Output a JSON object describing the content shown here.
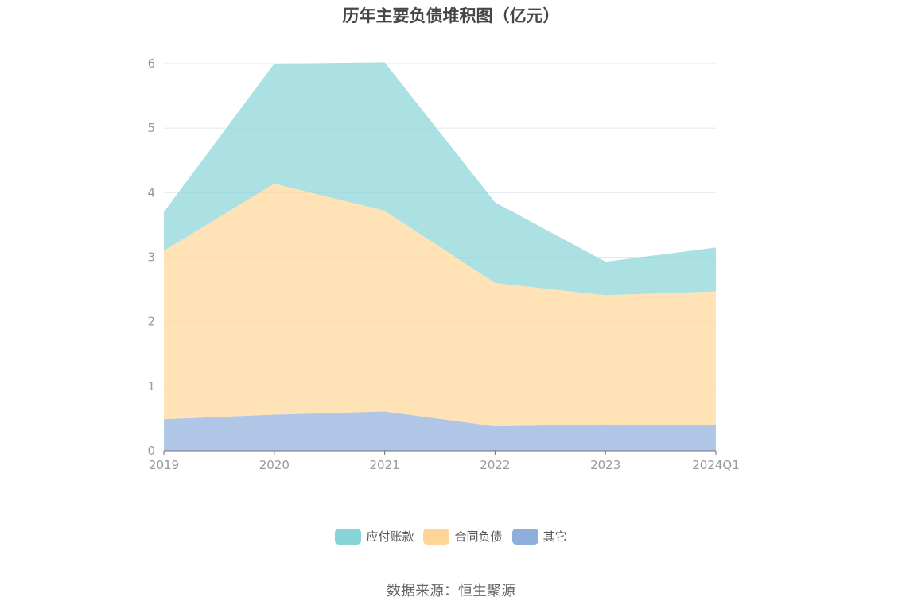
{
  "chart_data": {
    "type": "area",
    "title": "历年主要负债堆积图（亿元）",
    "x": [
      "2019",
      "2020",
      "2021",
      "2022",
      "2023",
      "2024Q1"
    ],
    "stacked": true,
    "ylim": [
      0,
      6
    ],
    "yticks": [
      "0",
      "1",
      "2",
      "3",
      "4",
      "5",
      "6"
    ],
    "grid": true,
    "legend_position": "bottom",
    "series": [
      {
        "name": "其它",
        "color": "#8eaedc",
        "values": [
          0.49,
          0.56,
          0.61,
          0.38,
          0.41,
          0.4
        ]
      },
      {
        "name": "合同负债",
        "color": "#ffd596",
        "values": [
          2.61,
          3.58,
          3.11,
          2.22,
          2.0,
          2.07
        ]
      },
      {
        "name": "应付账款",
        "color": "#89d4d7",
        "values": [
          0.6,
          1.86,
          2.3,
          1.25,
          0.52,
          0.68
        ]
      }
    ]
  },
  "legend": [
    {
      "label": "应付账款",
      "color": "#89d4d7"
    },
    {
      "label": "合同负债",
      "color": "#ffd596"
    },
    {
      "label": "其它",
      "color": "#8eaedc"
    }
  ],
  "source": "数据来源：恒生聚源"
}
